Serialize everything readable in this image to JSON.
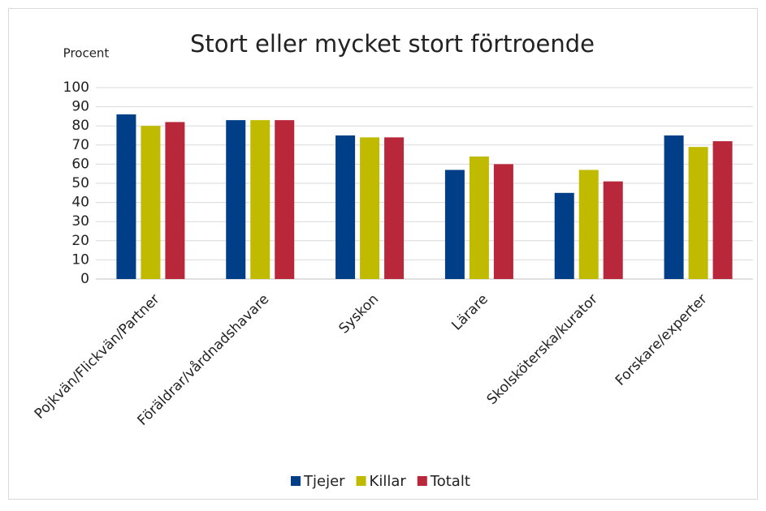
{
  "chart_data": {
    "type": "bar",
    "title": "Stort eller mycket stort förtroende",
    "y_axis_label": "Procent",
    "categories": [
      "Pojkvän/Flickvän/Partner",
      "Föräldrar/vårdnadshavare",
      "Syskon",
      "Lärare",
      "Skolsköterska/kurator",
      "Forskare/experter"
    ],
    "series": [
      {
        "name": "Tjejer",
        "color": "#003f87",
        "values": [
          86,
          83,
          75,
          57,
          45,
          75
        ]
      },
      {
        "name": "Killar",
        "color": "#c0bb00",
        "values": [
          80,
          83,
          74,
          64,
          57,
          69
        ]
      },
      {
        "name": "Totalt",
        "color": "#b8273a",
        "values": [
          82,
          83,
          74,
          60,
          51,
          72
        ]
      }
    ],
    "ylim": [
      0,
      100
    ],
    "yticks": [
      0,
      10,
      20,
      30,
      40,
      50,
      60,
      70,
      80,
      90,
      100
    ],
    "grid": true,
    "legend": "bottom"
  }
}
